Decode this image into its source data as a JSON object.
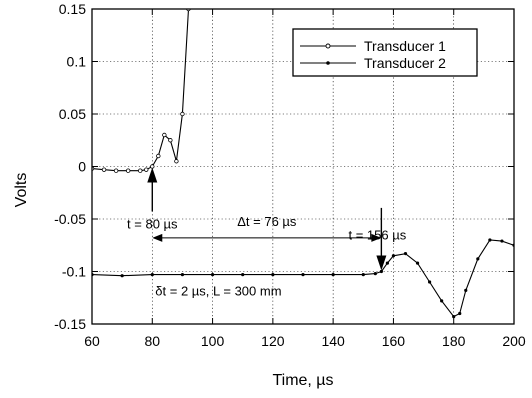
{
  "chart_data": {
    "type": "line",
    "title": "",
    "xlabel": "Time, µs",
    "ylabel": "Volts",
    "xlim": [
      60,
      200
    ],
    "ylim": [
      -0.15,
      0.15
    ],
    "x_ticks": [
      60,
      80,
      100,
      120,
      140,
      160,
      180,
      200
    ],
    "x_tick_labels": [
      "60",
      "80",
      "100",
      "120",
      "140",
      "160",
      "180",
      "200"
    ],
    "y_ticks": [
      -0.15,
      -0.1,
      -0.05,
      0,
      0.05,
      0.1,
      0.15
    ],
    "y_tick_labels": [
      "-0.15",
      "-0.1",
      "-0.05",
      "0",
      "0.05",
      "0.1",
      "0.15"
    ],
    "grid": true,
    "legend_position": "top-right",
    "series": [
      {
        "name": "Transducer 1",
        "marker": "open-circle",
        "x": [
          60,
          64,
          68,
          72,
          76,
          78,
          80,
          82,
          84,
          86,
          88,
          90,
          92
        ],
        "y": [
          -0.002,
          -0.003,
          -0.004,
          -0.004,
          -0.004,
          -0.003,
          0.0,
          0.01,
          0.03,
          0.025,
          0.005,
          0.05,
          0.15
        ]
      },
      {
        "name": "Transducer 2",
        "marker": "filled-dot",
        "x": [
          60,
          70,
          80,
          90,
          100,
          110,
          120,
          130,
          140,
          150,
          154,
          156,
          158,
          160,
          164,
          168,
          172,
          176,
          180,
          182,
          184,
          188,
          192,
          196,
          200
        ],
        "y": [
          -0.103,
          -0.104,
          -0.103,
          -0.103,
          -0.103,
          -0.103,
          -0.103,
          -0.103,
          -0.103,
          -0.103,
          -0.102,
          -0.1,
          -0.092,
          -0.085,
          -0.083,
          -0.092,
          -0.11,
          -0.128,
          -0.143,
          -0.14,
          -0.118,
          -0.088,
          -0.07,
          -0.071,
          -0.075
        ]
      }
    ],
    "annotations": {
      "delta_t": "Δt = 76 µs",
      "t1": "t = 80 µs",
      "t2": "t = 156 µs",
      "params": "δt = 2 µs, L = 300 mm"
    },
    "markers": {
      "t1_x": 80,
      "t1_y": 0,
      "t2_x": 156,
      "t2_y": -0.1,
      "span_y": -0.068
    }
  }
}
